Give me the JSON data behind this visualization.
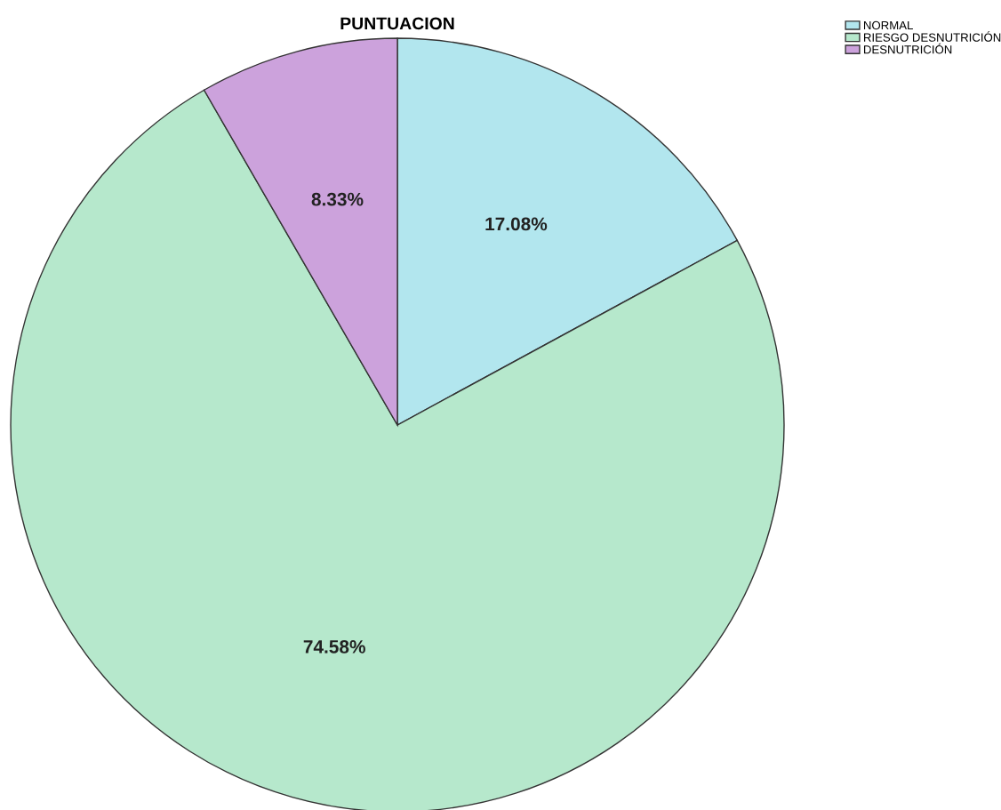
{
  "chart_data": {
    "type": "pie",
    "title": "PUNTUACION",
    "categories": [
      "NORMAL",
      "RIESGO DESNUTRICIÓN",
      "DESNUTRICIÓN"
    ],
    "values": [
      17.08,
      74.58,
      8.33
    ],
    "value_labels": [
      "17.08%",
      "74.58%",
      "8.33%"
    ],
    "colors": [
      "#b2e6ee",
      "#b6e8cc",
      "#cca2dc"
    ],
    "legend": "top right"
  }
}
